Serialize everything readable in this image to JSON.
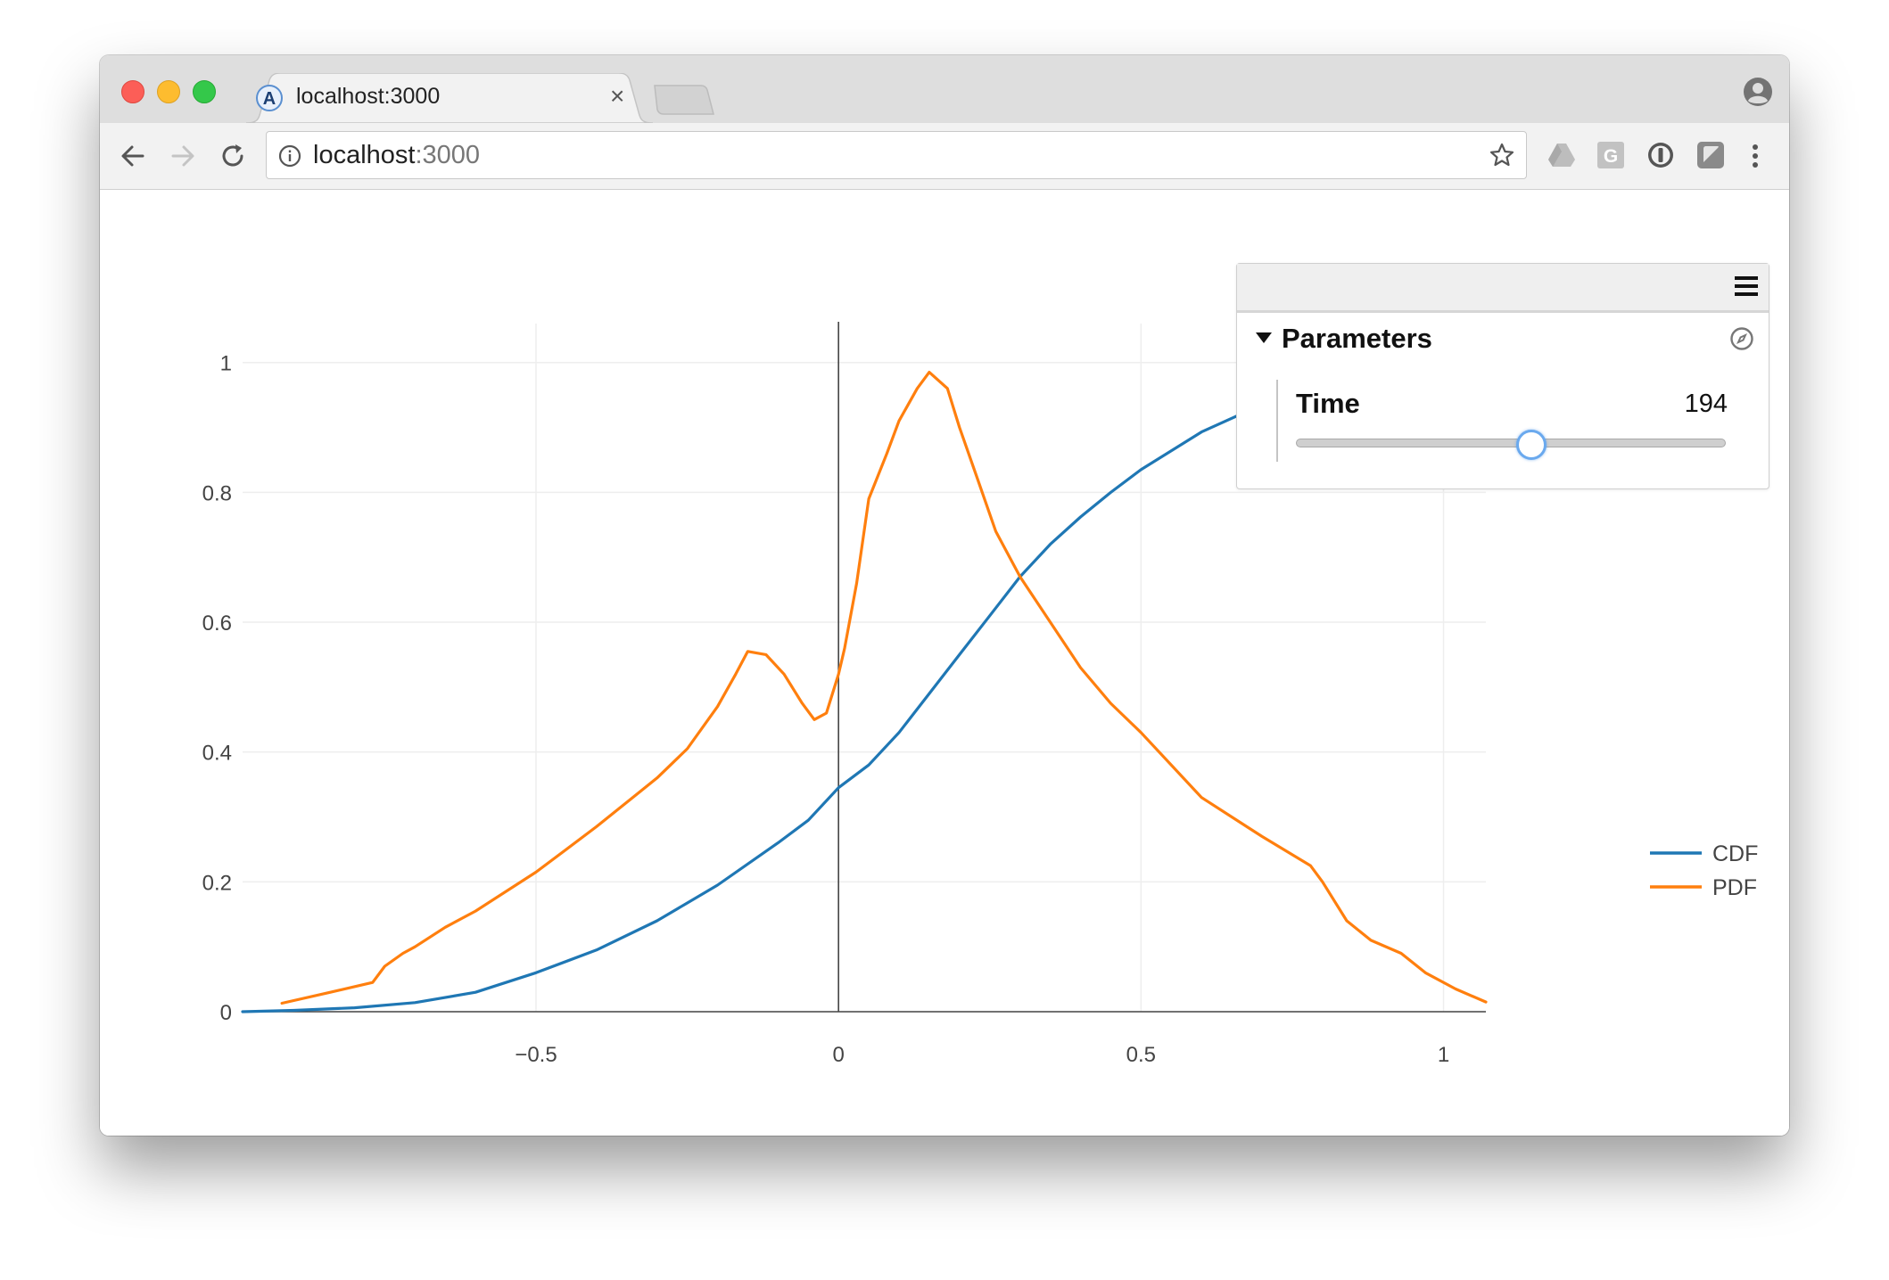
{
  "browser": {
    "tab_title": "localhost:3000",
    "tab_close": "×",
    "url_host": "localhost",
    "url_port": ":3000",
    "favicon": "a-logo-icon",
    "extensions": [
      "drive-icon",
      "grammarly-icon",
      "password-icon",
      "shield-icon"
    ]
  },
  "panel": {
    "menu_icon": "hamburger-icon",
    "folder_title": "Parameters",
    "folder_icon": "compass-icon",
    "param_label": "Time",
    "param_value": "194",
    "slider_fraction": 0.55
  },
  "colors": {
    "cdf": "#1f77b4",
    "pdf": "#ff7f0e",
    "grid": "#eeeeee",
    "axis_zero": "#444444"
  },
  "chart_data": {
    "type": "line",
    "title": "",
    "xlabel": "",
    "ylabel": "",
    "xlim": [
      -0.985,
      1.07
    ],
    "ylim": [
      0,
      1.06
    ],
    "xticks": [
      {
        "value": -0.5,
        "label": "−0.5"
      },
      {
        "value": 0,
        "label": "0"
      },
      {
        "value": 0.5,
        "label": "0.5"
      },
      {
        "value": 1,
        "label": "1"
      }
    ],
    "yticks": [
      {
        "value": 0,
        "label": "0"
      },
      {
        "value": 0.2,
        "label": "0.2"
      },
      {
        "value": 0.4,
        "label": "0.4"
      },
      {
        "value": 0.6,
        "label": "0.6"
      },
      {
        "value": 0.8,
        "label": "0.8"
      },
      {
        "value": 1,
        "label": "1"
      }
    ],
    "grid": true,
    "legend_position": "right",
    "series": [
      {
        "name": "CDF",
        "color": "#1f77b4",
        "x": [
          -0.985,
          -0.9,
          -0.8,
          -0.7,
          -0.6,
          -0.5,
          -0.4,
          -0.3,
          -0.2,
          -0.1,
          -0.05,
          0,
          0.05,
          0.1,
          0.15,
          0.2,
          0.25,
          0.3,
          0.35,
          0.4,
          0.45,
          0.5,
          0.6,
          0.7,
          0.8,
          0.9,
          1.0,
          1.07
        ],
        "y": [
          0.0,
          0.002,
          0.006,
          0.014,
          0.03,
          0.06,
          0.095,
          0.14,
          0.195,
          0.26,
          0.295,
          0.345,
          0.38,
          0.43,
          0.49,
          0.55,
          0.61,
          0.67,
          0.72,
          0.762,
          0.8,
          0.835,
          0.893,
          0.935,
          0.965,
          0.985,
          0.995,
          1.0
        ]
      },
      {
        "name": "PDF",
        "color": "#ff7f0e",
        "x": [
          -0.92,
          -0.84,
          -0.77,
          -0.75,
          -0.72,
          -0.7,
          -0.65,
          -0.6,
          -0.5,
          -0.4,
          -0.3,
          -0.25,
          -0.2,
          -0.17,
          -0.15,
          -0.12,
          -0.09,
          -0.06,
          -0.04,
          -0.02,
          -0.01,
          0,
          0.01,
          0.03,
          0.05,
          0.08,
          0.1,
          0.13,
          0.15,
          0.18,
          0.2,
          0.23,
          0.26,
          0.3,
          0.35,
          0.4,
          0.45,
          0.5,
          0.6,
          0.7,
          0.78,
          0.8,
          0.84,
          0.88,
          0.93,
          0.97,
          1.02,
          1.07
        ],
        "y": [
          0.013,
          0.03,
          0.045,
          0.07,
          0.09,
          0.1,
          0.13,
          0.155,
          0.215,
          0.285,
          0.36,
          0.405,
          0.47,
          0.52,
          0.555,
          0.55,
          0.52,
          0.475,
          0.45,
          0.46,
          0.49,
          0.52,
          0.56,
          0.66,
          0.79,
          0.86,
          0.91,
          0.96,
          0.985,
          0.96,
          0.9,
          0.82,
          0.74,
          0.67,
          0.6,
          0.53,
          0.475,
          0.43,
          0.33,
          0.27,
          0.225,
          0.2,
          0.14,
          0.11,
          0.09,
          0.06,
          0.035,
          0.015
        ]
      }
    ]
  }
}
